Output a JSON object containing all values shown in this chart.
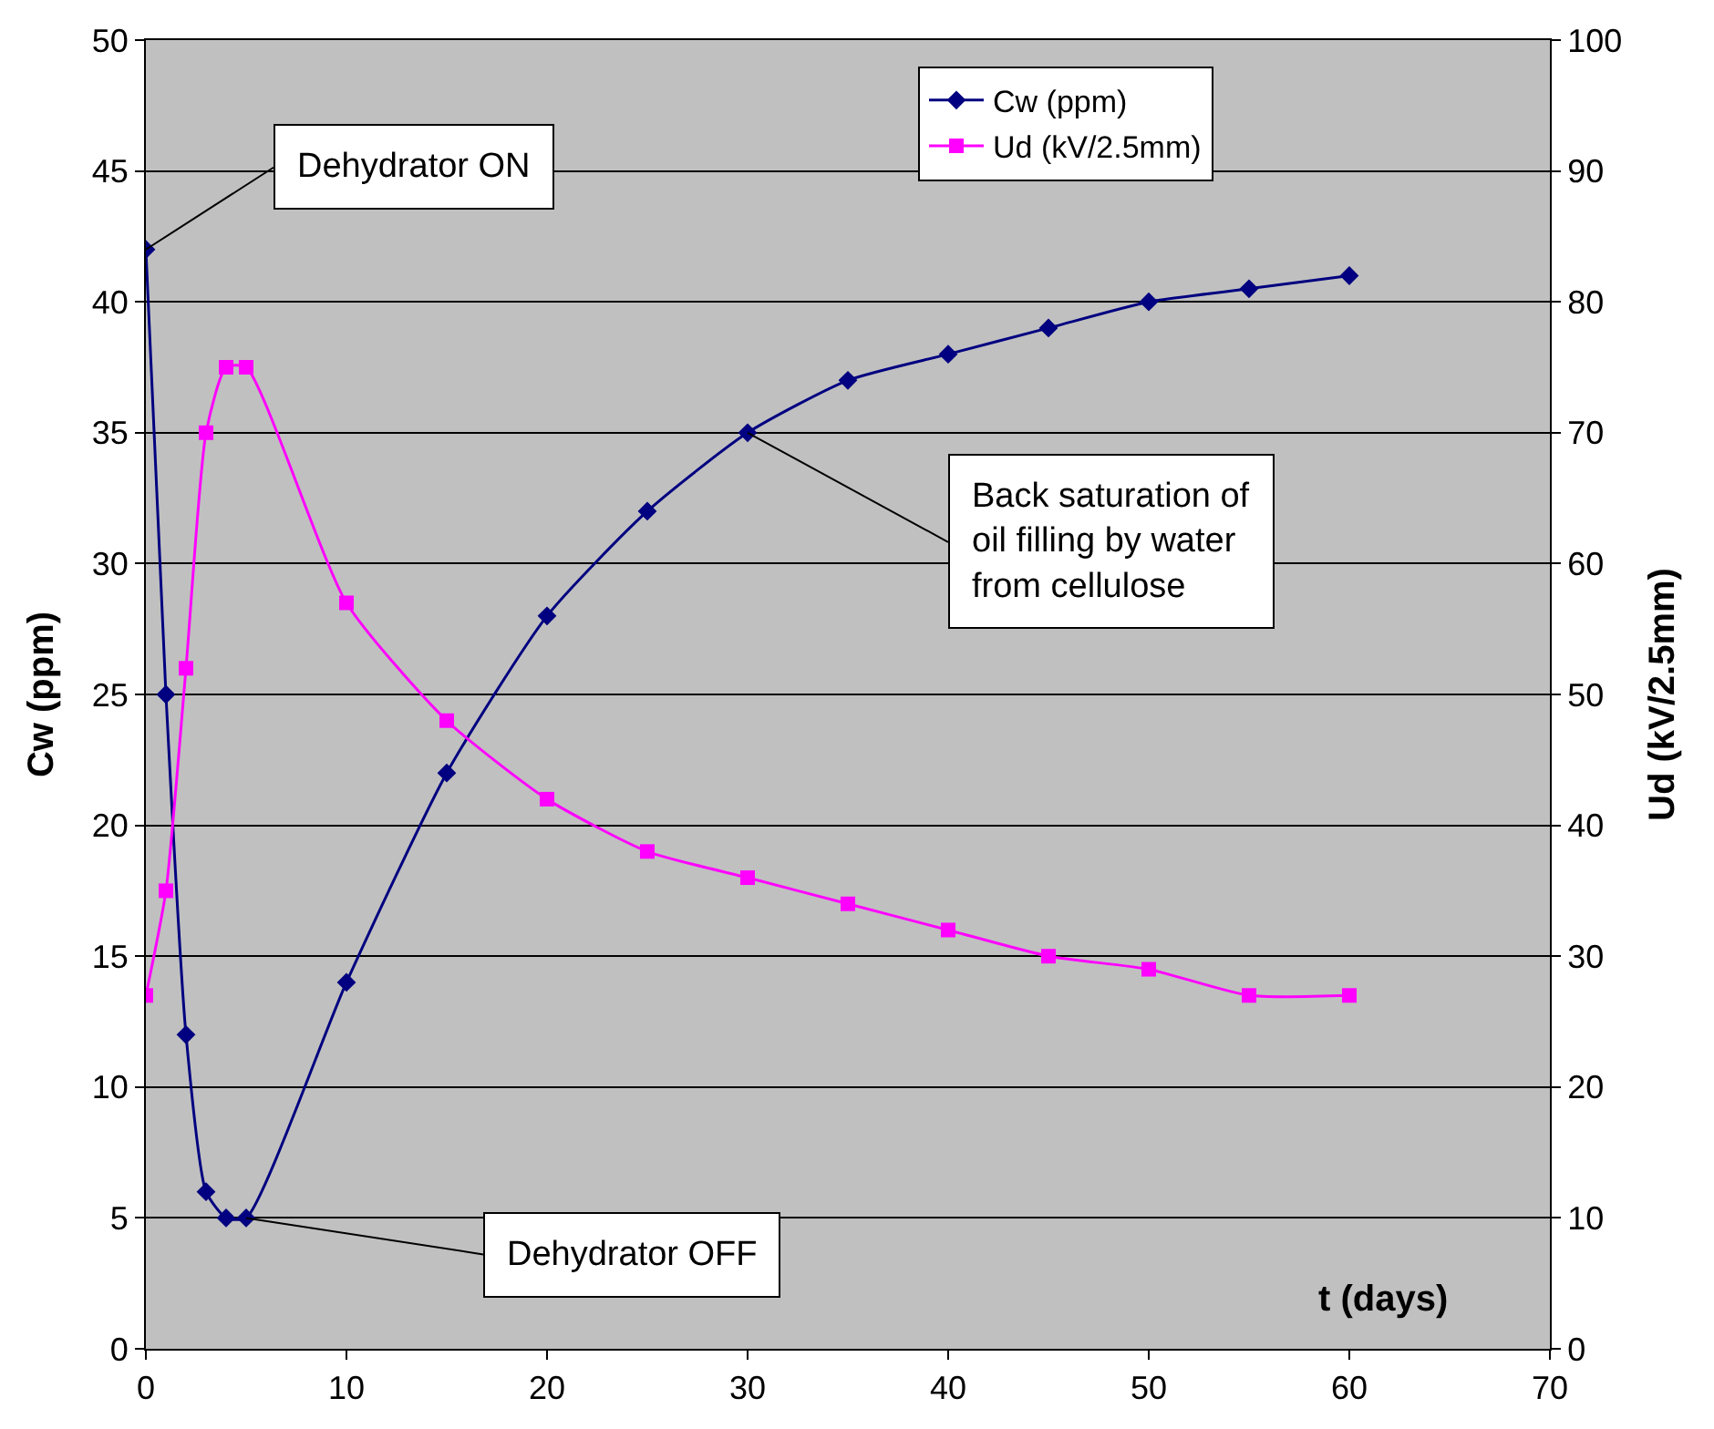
{
  "chart_data": {
    "type": "line",
    "x": [
      0,
      1,
      2,
      3,
      4,
      5,
      10,
      15,
      20,
      25,
      30,
      35,
      40,
      45,
      50,
      55,
      60
    ],
    "series": [
      {
        "name": "Cw (ppm)",
        "color": "#000080",
        "marker": "diamond",
        "values": [
          42,
          25,
          12,
          6,
          5,
          5,
          14,
          22,
          28,
          32,
          35,
          37,
          38,
          39,
          40,
          40.5,
          41
        ]
      },
      {
        "name": "Ud (kV/2.5mm)",
        "color": "#ff00ff",
        "marker": "square",
        "axis": "y2",
        "values": [
          27,
          35,
          52,
          70,
          75,
          75,
          57,
          48,
          42,
          38,
          36,
          34,
          32,
          30,
          29,
          27,
          27
        ]
      }
    ],
    "xlabel": "t (days)",
    "ylabel": "Cw (ppm)",
    "y2label": "Ud (kV/2.5mm)",
    "xlim": [
      0,
      70
    ],
    "xticks": [
      0,
      10,
      20,
      30,
      40,
      50,
      60,
      70
    ],
    "ylim": [
      0,
      50
    ],
    "yticks": [
      0,
      5,
      10,
      15,
      20,
      25,
      30,
      35,
      40,
      45,
      50
    ],
    "y2lim": [
      0,
      100
    ],
    "y2ticks": [
      0,
      10,
      20,
      30,
      40,
      50,
      60,
      70,
      80,
      90,
      100
    ],
    "grid": "y",
    "legend": "top right",
    "line_style": "solid",
    "annotations": [
      {
        "text": "Dehydrator ON",
        "x": 0,
        "y": 42
      },
      {
        "text": "Dehydrator OFF",
        "x": 5,
        "y": 5
      },
      {
        "text": "Back saturation of\noil filling by water\nfrom cellulose",
        "x": 30,
        "y": 35
      }
    ]
  }
}
